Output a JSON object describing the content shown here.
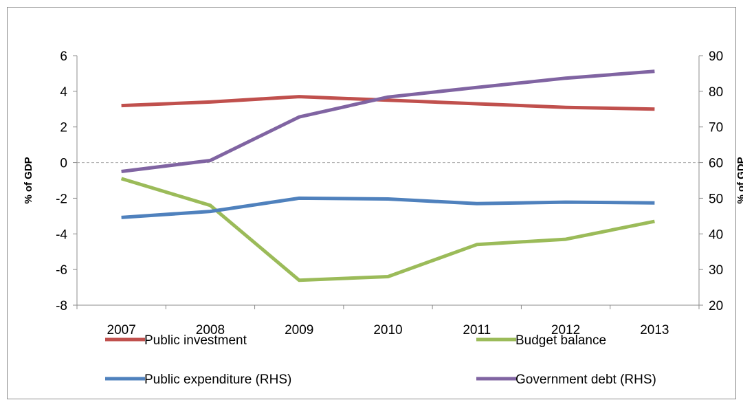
{
  "chart_data": {
    "type": "line",
    "categories": [
      "2007",
      "2008",
      "2009",
      "2010",
      "2011",
      "2012",
      "2013"
    ],
    "left_axis": {
      "label": "% of GDP",
      "ylim": [
        -8,
        6
      ],
      "ticks": [
        "-8",
        "-6",
        "-4",
        "-2",
        "0",
        "2",
        "4",
        "6"
      ]
    },
    "right_axis": {
      "label": "% of GDP",
      "ylim": [
        20,
        90
      ],
      "ticks": [
        "20",
        "30",
        "40",
        "50",
        "60",
        "70",
        "80",
        "90"
      ]
    },
    "series": [
      {
        "name": "Public investment",
        "axis": "left",
        "color": "#c0504d",
        "values": [
          3.2,
          3.4,
          3.7,
          3.5,
          3.3,
          3.1,
          3.0
        ]
      },
      {
        "name": "Budget balance",
        "axis": "left",
        "color": "#9bbb59",
        "values": [
          -0.9,
          -2.4,
          -6.6,
          -6.4,
          -4.6,
          -4.3,
          -3.3
        ]
      },
      {
        "name": "Public expenditure (RHS)",
        "axis": "right",
        "color": "#4f81bd",
        "values": [
          44.6,
          46.3,
          50.0,
          49.8,
          48.5,
          48.9,
          48.7
        ]
      },
      {
        "name": "Government debt (RHS)",
        "axis": "right",
        "color": "#8064a2",
        "values": [
          57.5,
          60.6,
          72.8,
          78.4,
          81.1,
          83.7,
          85.6
        ]
      }
    ],
    "zero_line": {
      "axis": "left",
      "value": 0,
      "style": "dashed",
      "color": "#a6a6a6"
    },
    "grid": false,
    "legend_position": "bottom"
  }
}
